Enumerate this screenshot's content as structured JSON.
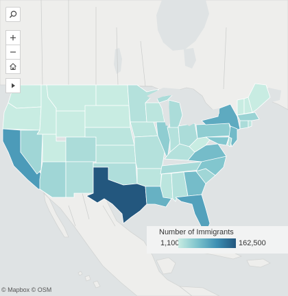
{
  "map": {
    "legend": {
      "title": "Number of Immigrants",
      "min_label": "1,100",
      "max_label": "162,500",
      "min_value": 1100,
      "max_value": 162500,
      "color_low": "#c8ece2",
      "color_high": "#23577e"
    },
    "attribution": "© Mapbox  © OSM",
    "colors": {
      "water": "#dfe3e4",
      "land": "#eeeeec",
      "state_border": "#ffffff"
    },
    "controls": {
      "search_icon": "search-icon",
      "zoom_in_icon": "plus-icon",
      "zoom_out_icon": "minus-icon",
      "home_icon": "home-icon",
      "play_icon": "play-icon"
    },
    "states": [
      {
        "code": "WA",
        "value": 1100
      },
      {
        "code": "OR",
        "value": 1100
      },
      {
        "code": "CA",
        "value": 62000
      },
      {
        "code": "ID",
        "value": 1100
      },
      {
        "code": "NV",
        "value": 8000
      },
      {
        "code": "AZ",
        "value": 8000
      },
      {
        "code": "UT",
        "value": 1100
      },
      {
        "code": "MT",
        "value": 1100
      },
      {
        "code": "WY",
        "value": 1100
      },
      {
        "code": "CO",
        "value": 5000
      },
      {
        "code": "NM",
        "value": 4000
      },
      {
        "code": "ND",
        "value": 1100
      },
      {
        "code": "SD",
        "value": 1100
      },
      {
        "code": "NE",
        "value": 2000
      },
      {
        "code": "KS",
        "value": 2000
      },
      {
        "code": "OK",
        "value": 4000
      },
      {
        "code": "TX",
        "value": 162500
      },
      {
        "code": "MN",
        "value": 3000
      },
      {
        "code": "IA",
        "value": 2000
      },
      {
        "code": "MO",
        "value": 3000
      },
      {
        "code": "AR",
        "value": 2000
      },
      {
        "code": "LA",
        "value": 38000
      },
      {
        "code": "WI",
        "value": 2000
      },
      {
        "code": "IL",
        "value": 14000
      },
      {
        "code": "MI",
        "value": 5000
      },
      {
        "code": "IN",
        "value": 3000
      },
      {
        "code": "OH",
        "value": 5000
      },
      {
        "code": "KY",
        "value": 3000
      },
      {
        "code": "TN",
        "value": 6000
      },
      {
        "code": "MS",
        "value": 2000
      },
      {
        "code": "AL",
        "value": 3000
      },
      {
        "code": "GA",
        "value": 28000
      },
      {
        "code": "FL",
        "value": 55000
      },
      {
        "code": "SC",
        "value": 8000
      },
      {
        "code": "NC",
        "value": 20000
      },
      {
        "code": "VA",
        "value": 28000
      },
      {
        "code": "WV",
        "value": 1100
      },
      {
        "code": "PA",
        "value": 14000
      },
      {
        "code": "NY",
        "value": 45000
      },
      {
        "code": "NJ",
        "value": 30000
      },
      {
        "code": "MD",
        "value": 20000
      },
      {
        "code": "DE",
        "value": 3000
      },
      {
        "code": "CT",
        "value": 5000
      },
      {
        "code": "RI",
        "value": 2000
      },
      {
        "code": "MA",
        "value": 10000
      },
      {
        "code": "VT",
        "value": 1100
      },
      {
        "code": "NH",
        "value": 1100
      },
      {
        "code": "ME",
        "value": 1100
      }
    ]
  }
}
